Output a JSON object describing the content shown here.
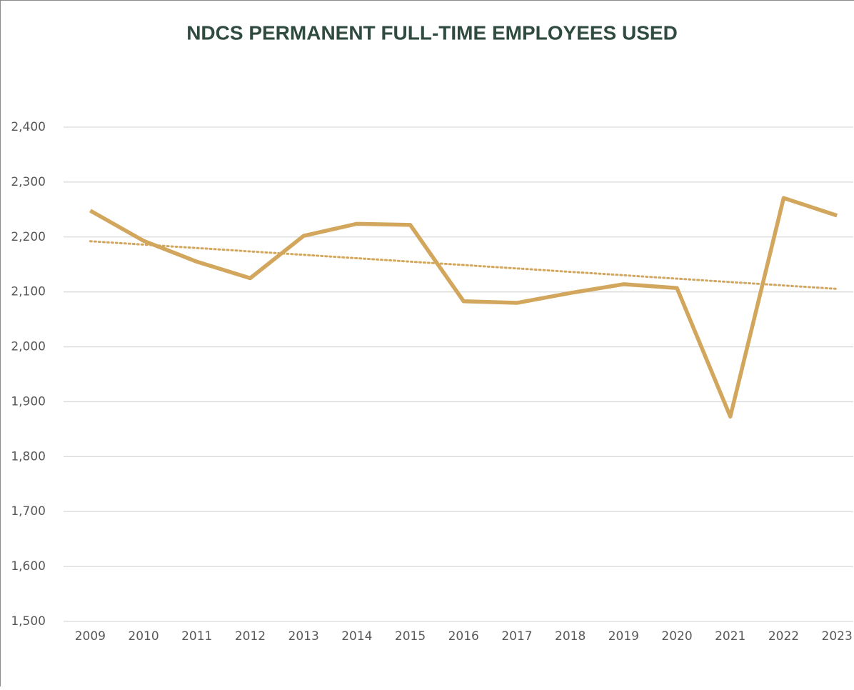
{
  "chart_data": {
    "type": "line",
    "title": "NDCS PERMANENT FULL-TIME EMPLOYEES USED",
    "categories": [
      "2009",
      "2010",
      "2011",
      "2012",
      "2013",
      "2014",
      "2015",
      "2016",
      "2017",
      "2018",
      "2019",
      "2020",
      "2021",
      "2022",
      "2023"
    ],
    "series": [
      {
        "color": "#d2a65c",
        "trendline": "linear",
        "values": [
          2248,
          2193,
          2155,
          2125,
          2202,
          2224,
          2222,
          2083,
          2080,
          2098,
          2114,
          2107,
          1873,
          2271,
          2239
        ]
      }
    ],
    "ylim": [
      1500,
      2400
    ],
    "yticks": [
      {
        "value": 1500,
        "label": "1,500"
      },
      {
        "value": 1600,
        "label": "1,600"
      },
      {
        "value": 1700,
        "label": "1,700"
      },
      {
        "value": 1800,
        "label": "1,800"
      },
      {
        "value": 1900,
        "label": "1,900"
      },
      {
        "value": 2000,
        "label": "2,000"
      },
      {
        "value": 2100,
        "label": "2,100"
      },
      {
        "value": 2200,
        "label": "2,200"
      },
      {
        "value": 2300,
        "label": "2,300"
      },
      {
        "value": 2400,
        "label": "2,400"
      }
    ],
    "grid": true
  }
}
